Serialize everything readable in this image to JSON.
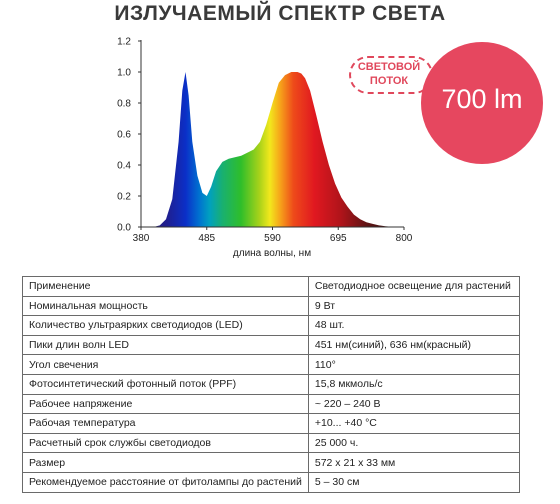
{
  "title": "ИЗЛУЧАЕМЫЙ СПЕКТР СВЕТА",
  "badge": {
    "label": "Световой поток",
    "value": "700 lm"
  },
  "chart_data": {
    "type": "area",
    "xlabel": "длина волны, нм",
    "ylabel": "",
    "xlim": [
      380,
      800
    ],
    "ylim": [
      0,
      1.2
    ],
    "xticks": [
      "380",
      "485",
      "590",
      "695",
      "800"
    ],
    "yticks": [
      "0.0",
      "0.2",
      "0.4",
      "0.6",
      "0.8",
      "1.0",
      "1.2"
    ],
    "grid": false,
    "series": [
      {
        "x": [
          400,
          410,
          420,
          430,
          440,
          446,
          451,
          456,
          462,
          470,
          478,
          485,
          492,
          500,
          510,
          520,
          530,
          540,
          550,
          560,
          570,
          580,
          590,
          600,
          610,
          620,
          630,
          636,
          642,
          650,
          660,
          670,
          680,
          690,
          700,
          710,
          720,
          730,
          740,
          750,
          760,
          770,
          780,
          790
        ],
        "y": [
          0.0,
          0.01,
          0.05,
          0.18,
          0.55,
          0.88,
          1.0,
          0.85,
          0.55,
          0.33,
          0.22,
          0.2,
          0.26,
          0.36,
          0.42,
          0.44,
          0.45,
          0.46,
          0.48,
          0.5,
          0.55,
          0.66,
          0.8,
          0.93,
          0.98,
          1.0,
          1.0,
          0.99,
          0.96,
          0.88,
          0.72,
          0.55,
          0.4,
          0.28,
          0.19,
          0.13,
          0.08,
          0.05,
          0.03,
          0.02,
          0.01,
          0.005,
          0.002,
          0.0
        ]
      }
    ]
  },
  "specs": [
    [
      "Применение",
      "Светодиодное освещение для растений"
    ],
    [
      "Номинальная мощность",
      "9 Вт"
    ],
    [
      "Количество ультраярких светодиодов (LED)",
      "48 шт."
    ],
    [
      "Пики длин волн LED",
      "451 нм(синий), 636 нм(красный)"
    ],
    [
      "Угол свечения",
      "110°"
    ],
    [
      "Фотосинтетический фотонный поток (PPF)",
      "15,8 мкмоль/с"
    ],
    [
      "Рабочее напряжение",
      "~ 220 – 240 В"
    ],
    [
      "Рабочая температура",
      "+10... +40 °C"
    ],
    [
      "Расчетный срок службы светодиодов",
      "25 000 ч."
    ],
    [
      "Размер",
      "572 х 21 х 33 мм"
    ],
    [
      "Рекомендуемое расстояние от фитолампы до растений",
      "5 – 30 см"
    ]
  ]
}
